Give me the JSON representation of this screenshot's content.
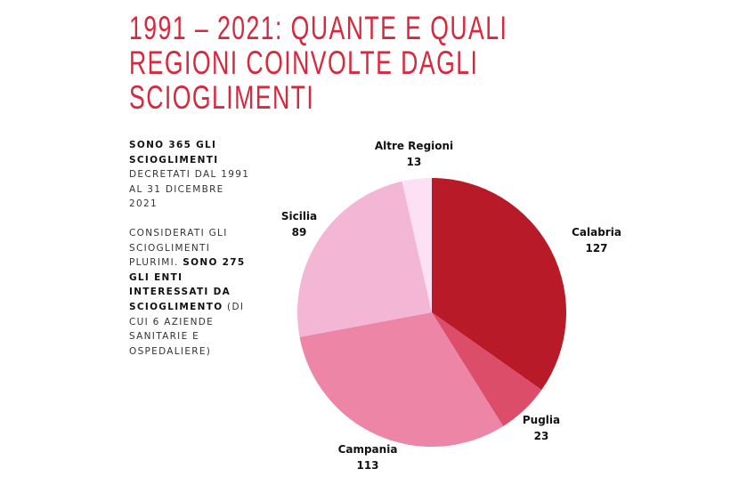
{
  "title_lines": [
    "1991 – 2021: QUANTE E QUALI",
    "REGIONI COINVOLTE DAGLI",
    "SCIOGLIMENTI"
  ],
  "side_text": {
    "p1": [
      [
        {
          "t": "SONO 365 GLI",
          "b": true
        }
      ],
      [
        {
          "t": "SCIOGLIMENTI",
          "b": true
        }
      ],
      [
        {
          "t": "DECRETATI DAL 1991",
          "b": false
        }
      ],
      [
        {
          "t": "AL 31 DICEMBRE",
          "b": false
        }
      ],
      [
        {
          "t": "2021",
          "b": false
        }
      ]
    ],
    "p2": [
      [
        {
          "t": "CONSIDERATI GLI",
          "b": false
        }
      ],
      [
        {
          "t": "SCIOGLIMENTI",
          "b": false
        }
      ],
      [
        {
          "t": "PLURIMI. ",
          "b": false
        },
        {
          "t": "SONO 275",
          "b": true
        }
      ],
      [
        {
          "t": "GLI ENTI",
          "b": true
        }
      ],
      [
        {
          "t": "INTERESSATI DA",
          "b": true
        }
      ],
      [
        {
          "t": "SCIOGLIMENTO",
          "b": true
        },
        {
          "t": " (DI",
          "b": false
        }
      ],
      [
        {
          "t": "CUI 6 AZIENDE",
          "b": false
        }
      ],
      [
        {
          "t": "SANITARIE E",
          "b": false
        }
      ],
      [
        {
          "t": "OSPEDALIERE)",
          "b": false
        }
      ]
    ]
  },
  "chart_data": {
    "type": "pie",
    "title": "1991 – 2021: QUANTE E QUALI REGIONI COINVOLTE DAGLI SCIOGLIMENTI",
    "start": "top",
    "direction": "clockwise",
    "categories": [
      "Calabria",
      "Puglia",
      "Campania",
      "Sicilia",
      "Altre Regioni"
    ],
    "values": [
      127,
      23,
      113,
      89,
      13
    ],
    "colors": [
      "#b81a28",
      "#dc4d6a",
      "#ec85a6",
      "#f4b6d5",
      "#fde0f4"
    ],
    "total": 365
  }
}
